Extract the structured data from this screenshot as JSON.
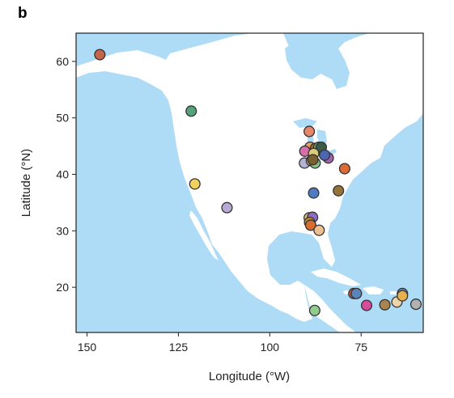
{
  "panel_label": "b",
  "x_axis_title": "Longitude (°W)",
  "y_axis_title": "Latitude (°N)",
  "colors": {
    "ocean": "#aedcf7",
    "land": "#ffffff",
    "lake": "#aedcf7",
    "marker_stroke": "#333333"
  },
  "chart_data": {
    "type": "scatter",
    "xlabel": "Longitude (°W)",
    "ylabel": "Latitude (°N)",
    "xlim": [
      153,
      58
    ],
    "ylim": [
      12,
      65
    ],
    "xticks": [
      150,
      125,
      100,
      75
    ],
    "yticks": [
      20,
      30,
      40,
      50,
      60
    ],
    "points": [
      {
        "x": 146.5,
        "y": 61.2,
        "color": "#c4644a"
      },
      {
        "x": 121.5,
        "y": 51.2,
        "color": "#55a37a"
      },
      {
        "x": 120.5,
        "y": 38.3,
        "color": "#f2d25e"
      },
      {
        "x": 111.7,
        "y": 34.1,
        "color": "#b9a9d6"
      },
      {
        "x": 89.2,
        "y": 47.6,
        "color": "#e8866a"
      },
      {
        "x": 89.0,
        "y": 44.8,
        "color": "#e8a067"
      },
      {
        "x": 90.4,
        "y": 44.1,
        "color": "#d86fa8"
      },
      {
        "x": 87.5,
        "y": 44.6,
        "color": "#9c6c3e"
      },
      {
        "x": 86.6,
        "y": 44.8,
        "color": "#6ca26c"
      },
      {
        "x": 85.9,
        "y": 44.8,
        "color": "#3d5a43"
      },
      {
        "x": 88.0,
        "y": 43.7,
        "color": "#d9cc7c"
      },
      {
        "x": 84.0,
        "y": 42.9,
        "color": "#a064a8"
      },
      {
        "x": 85.0,
        "y": 43.4,
        "color": "#4c66b0"
      },
      {
        "x": 90.5,
        "y": 42.0,
        "color": "#b3b3d6"
      },
      {
        "x": 88.6,
        "y": 42.4,
        "color": "#e0b94e"
      },
      {
        "x": 87.6,
        "y": 42.0,
        "color": "#88c08a"
      },
      {
        "x": 88.2,
        "y": 42.6,
        "color": "#7a6030"
      },
      {
        "x": 79.5,
        "y": 41.0,
        "color": "#dc6c34"
      },
      {
        "x": 88.0,
        "y": 36.7,
        "color": "#4f7cc0"
      },
      {
        "x": 81.2,
        "y": 37.1,
        "color": "#947438"
      },
      {
        "x": 89.2,
        "y": 32.3,
        "color": "#e0c486"
      },
      {
        "x": 88.3,
        "y": 32.4,
        "color": "#8e6cc6"
      },
      {
        "x": 89.1,
        "y": 31.5,
        "color": "#c89024"
      },
      {
        "x": 88.8,
        "y": 31.0,
        "color": "#d86c2c"
      },
      {
        "x": 86.5,
        "y": 30.1,
        "color": "#efc08e"
      },
      {
        "x": 77.0,
        "y": 18.9,
        "color": "#b46048"
      },
      {
        "x": 76.3,
        "y": 18.9,
        "color": "#5c84bc"
      },
      {
        "x": 73.5,
        "y": 16.8,
        "color": "#d64c98"
      },
      {
        "x": 68.5,
        "y": 16.9,
        "color": "#a88450"
      },
      {
        "x": 65.2,
        "y": 17.4,
        "color": "#ebd4ac"
      },
      {
        "x": 63.7,
        "y": 18.9,
        "color": "#6c8ec6"
      },
      {
        "x": 63.7,
        "y": 18.5,
        "color": "#e8b04c"
      },
      {
        "x": 60.0,
        "y": 17.0,
        "color": "#b2b2b2"
      },
      {
        "x": 87.7,
        "y": 15.9,
        "color": "#90cc8c"
      }
    ]
  }
}
